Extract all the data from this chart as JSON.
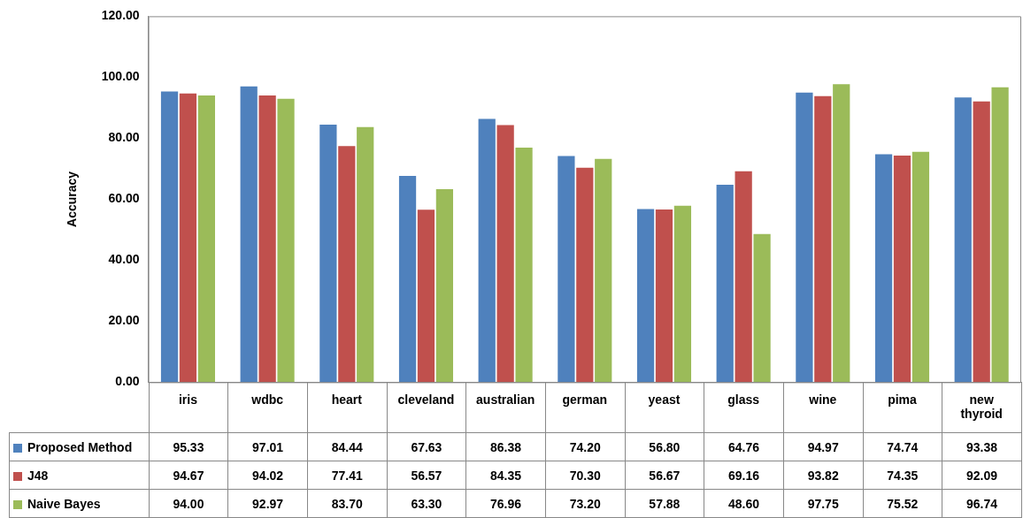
{
  "chart_data": {
    "type": "bar",
    "ylabel": "Accuracy",
    "categories": [
      "iris",
      "wdbc",
      "heart",
      "cleveland",
      "australian",
      "german",
      "yeast",
      "glass",
      "wine",
      "pima",
      "new thyroid"
    ],
    "series": [
      {
        "name": "Proposed Method",
        "color": "#4f81bd",
        "values": [
          95.33,
          97.01,
          84.44,
          67.63,
          86.38,
          74.2,
          56.8,
          64.76,
          94.97,
          74.74,
          93.38
        ],
        "value_labels": [
          "95.33",
          "97.01",
          "84.44",
          "67.63",
          "86.38",
          "74.20",
          "56.80",
          "64.76",
          "94.97",
          "74.74",
          "93.38"
        ]
      },
      {
        "name": "J48",
        "color": "#c0504d",
        "values": [
          94.67,
          94.02,
          77.41,
          56.57,
          84.35,
          70.3,
          56.67,
          69.16,
          93.82,
          74.35,
          92.09
        ],
        "value_labels": [
          "94.67",
          "94.02",
          "77.41",
          "56.57",
          "84.35",
          "70.30",
          "56.67",
          "69.16",
          "93.82",
          "74.35",
          "92.09"
        ]
      },
      {
        "name": "Naive Bayes",
        "color": "#9bbb59",
        "values": [
          94.0,
          92.97,
          83.7,
          63.3,
          76.96,
          73.2,
          57.88,
          48.6,
          97.75,
          75.52,
          96.74
        ],
        "value_labels": [
          "94.00",
          "92.97",
          "83.70",
          "63.30",
          "76.96",
          "73.20",
          "57.88",
          "48.60",
          "97.75",
          "75.52",
          "96.74"
        ]
      }
    ],
    "ylim": [
      0,
      120
    ],
    "yticks": [
      {
        "value": 0,
        "label": "0.00"
      },
      {
        "value": 20,
        "label": "20.00"
      },
      {
        "value": 40,
        "label": "40.00"
      },
      {
        "value": 60,
        "label": "60.00"
      },
      {
        "value": 80,
        "label": "80.00"
      },
      {
        "value": 100,
        "label": "100.00"
      },
      {
        "value": 120,
        "label": "120.00"
      }
    ],
    "grid": false,
    "legend": "bottom"
  }
}
